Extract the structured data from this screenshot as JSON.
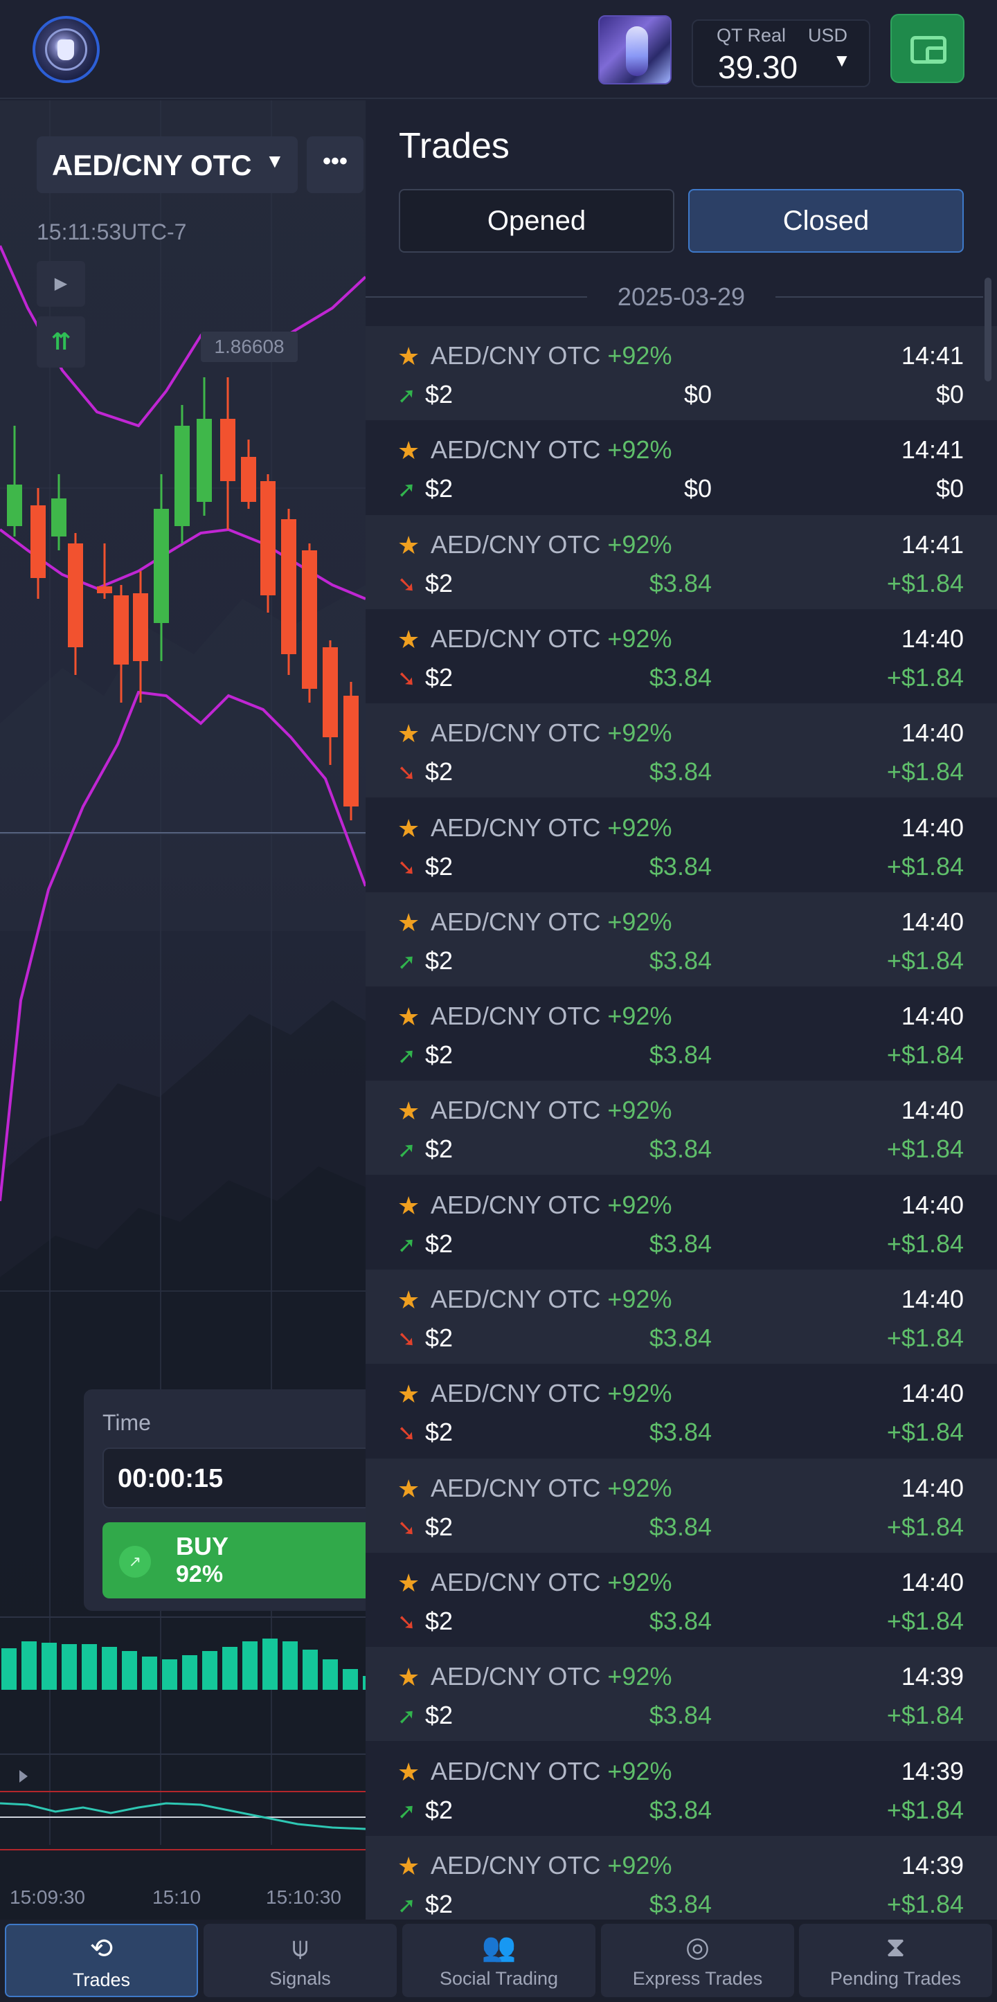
{
  "header": {
    "account_label": "QT Real",
    "currency": "USD",
    "balance": "39.30"
  },
  "chart": {
    "asset": "AED/CNY OTC",
    "more": "•••",
    "clock": "15:11:53UTC-7",
    "price_tag": "1.86608",
    "x_ticks": [
      "15:09:30",
      "15:10",
      "15:10:30"
    ]
  },
  "trade_panel": {
    "time_label": "Time",
    "time_value": "00:00:15",
    "buy_label": "BUY",
    "buy_payout": "92%"
  },
  "trades": {
    "title": "Trades",
    "tabs": {
      "opened": "Opened",
      "closed": "Closed"
    },
    "date": "2025-03-29",
    "rows": [
      {
        "asset": "AED/CNY OTC",
        "payout": "+92%",
        "time": "14:41",
        "direction": "up",
        "stake": "$2",
        "payoff": "$0",
        "profit": "$0",
        "win": false
      },
      {
        "asset": "AED/CNY OTC",
        "payout": "+92%",
        "time": "14:41",
        "direction": "up",
        "stake": "$2",
        "payoff": "$0",
        "profit": "$0",
        "win": false
      },
      {
        "asset": "AED/CNY OTC",
        "payout": "+92%",
        "time": "14:41",
        "direction": "down",
        "stake": "$2",
        "payoff": "$3.84",
        "profit": "+$1.84",
        "win": true
      },
      {
        "asset": "AED/CNY OTC",
        "payout": "+92%",
        "time": "14:40",
        "direction": "down",
        "stake": "$2",
        "payoff": "$3.84",
        "profit": "+$1.84",
        "win": true
      },
      {
        "asset": "AED/CNY OTC",
        "payout": "+92%",
        "time": "14:40",
        "direction": "down",
        "stake": "$2",
        "payoff": "$3.84",
        "profit": "+$1.84",
        "win": true
      },
      {
        "asset": "AED/CNY OTC",
        "payout": "+92%",
        "time": "14:40",
        "direction": "down",
        "stake": "$2",
        "payoff": "$3.84",
        "profit": "+$1.84",
        "win": true
      },
      {
        "asset": "AED/CNY OTC",
        "payout": "+92%",
        "time": "14:40",
        "direction": "up",
        "stake": "$2",
        "payoff": "$3.84",
        "profit": "+$1.84",
        "win": true
      },
      {
        "asset": "AED/CNY OTC",
        "payout": "+92%",
        "time": "14:40",
        "direction": "up",
        "stake": "$2",
        "payoff": "$3.84",
        "profit": "+$1.84",
        "win": true
      },
      {
        "asset": "AED/CNY OTC",
        "payout": "+92%",
        "time": "14:40",
        "direction": "up",
        "stake": "$2",
        "payoff": "$3.84",
        "profit": "+$1.84",
        "win": true
      },
      {
        "asset": "AED/CNY OTC",
        "payout": "+92%",
        "time": "14:40",
        "direction": "up",
        "stake": "$2",
        "payoff": "$3.84",
        "profit": "+$1.84",
        "win": true
      },
      {
        "asset": "AED/CNY OTC",
        "payout": "+92%",
        "time": "14:40",
        "direction": "down",
        "stake": "$2",
        "payoff": "$3.84",
        "profit": "+$1.84",
        "win": true
      },
      {
        "asset": "AED/CNY OTC",
        "payout": "+92%",
        "time": "14:40",
        "direction": "down",
        "stake": "$2",
        "payoff": "$3.84",
        "profit": "+$1.84",
        "win": true
      },
      {
        "asset": "AED/CNY OTC",
        "payout": "+92%",
        "time": "14:40",
        "direction": "down",
        "stake": "$2",
        "payoff": "$3.84",
        "profit": "+$1.84",
        "win": true
      },
      {
        "asset": "AED/CNY OTC",
        "payout": "+92%",
        "time": "14:40",
        "direction": "down",
        "stake": "$2",
        "payoff": "$3.84",
        "profit": "+$1.84",
        "win": true
      },
      {
        "asset": "AED/CNY OTC",
        "payout": "+92%",
        "time": "14:39",
        "direction": "up",
        "stake": "$2",
        "payoff": "$3.84",
        "profit": "+$1.84",
        "win": true
      },
      {
        "asset": "AED/CNY OTC",
        "payout": "+92%",
        "time": "14:39",
        "direction": "up",
        "stake": "$2",
        "payoff": "$3.84",
        "profit": "+$1.84",
        "win": true
      },
      {
        "asset": "AED/CNY OTC",
        "payout": "+92%",
        "time": "14:39",
        "direction": "up",
        "stake": "$2",
        "payoff": "$3.84",
        "profit": "+$1.84",
        "win": true
      }
    ]
  },
  "nav": [
    {
      "key": "trades",
      "label": "Trades",
      "icon": "history-icon",
      "active": true
    },
    {
      "key": "signals",
      "label": "Signals",
      "icon": "antenna-icon",
      "active": false
    },
    {
      "key": "social",
      "label": "Social Trading",
      "icon": "users-icon",
      "active": false
    },
    {
      "key": "express",
      "label": "Express Trades",
      "icon": "target-icon",
      "active": false
    },
    {
      "key": "pending",
      "label": "Pending Trades",
      "icon": "hourglass-icon",
      "active": false
    }
  ],
  "colors": {
    "background": "#1e2232",
    "up": "#31b44d",
    "down": "#e2422c",
    "profit": "#5fbf6a",
    "star": "#f0a020",
    "accent": "#3e79c9",
    "bollinger": "#c026d3",
    "volume": "#14c79a"
  }
}
